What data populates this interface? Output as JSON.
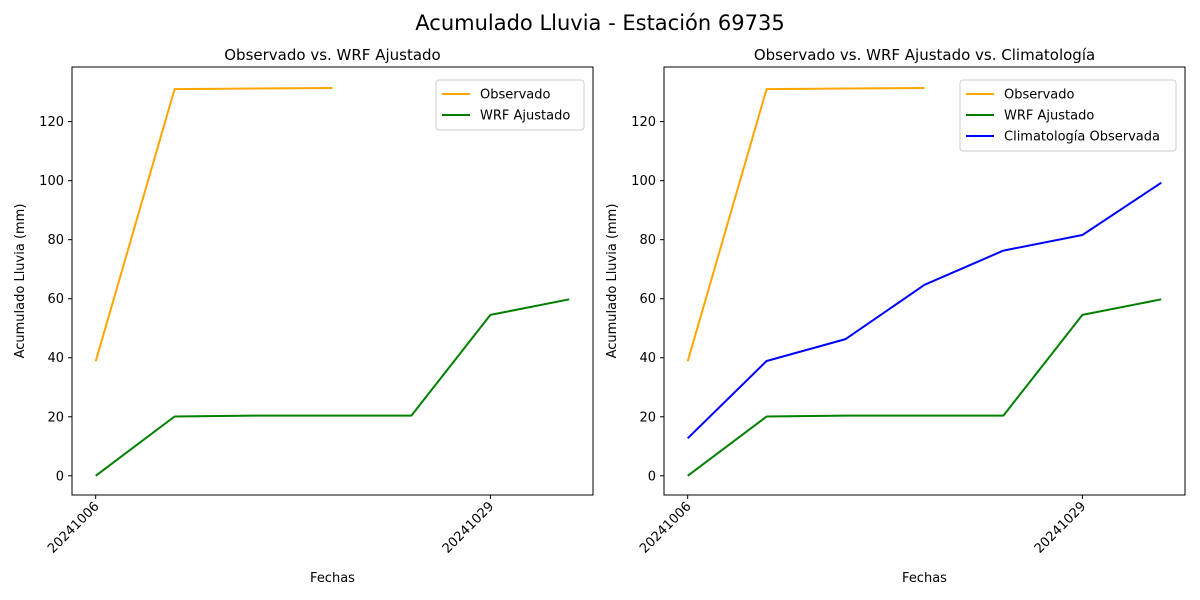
{
  "suptitle": "Acumulado Lluvia - Estación 69735",
  "chart_data": [
    {
      "type": "line",
      "title": "Observado vs. WRF Ajustado",
      "xlabel": "Fechas",
      "ylabel": "Acumulado Lluvia (mm)",
      "x_ticklabels": [
        "20241006",
        "20241029"
      ],
      "x_tick_index": [
        0,
        5
      ],
      "xlim": [
        -0.3,
        6.3
      ],
      "ylim": [
        -6.5,
        138.5
      ],
      "y_ticks": [
        0,
        20,
        40,
        60,
        80,
        100,
        120
      ],
      "grid": false,
      "legend_position": "upper right",
      "series": [
        {
          "name": "Observado",
          "color": "#ffa500",
          "values": [
            38.8,
            131.0,
            131.2,
            131.4
          ]
        },
        {
          "name": "WRF Ajustado",
          "color": "#008000",
          "values": [
            0,
            20.1,
            20.4,
            20.4,
            20.4,
            54.5,
            59.8
          ]
        }
      ]
    },
    {
      "type": "line",
      "title": "Observado vs. WRF Ajustado vs. Climatología",
      "xlabel": "Fechas",
      "ylabel": "Acumulado Lluvia (mm)",
      "x_ticklabels": [
        "20241006",
        "20241029"
      ],
      "x_tick_index": [
        0,
        5
      ],
      "xlim": [
        -0.3,
        6.3
      ],
      "ylim": [
        -6.5,
        138.5
      ],
      "y_ticks": [
        0,
        20,
        40,
        60,
        80,
        100,
        120
      ],
      "grid": false,
      "legend_position": "upper right",
      "series": [
        {
          "name": "Observado",
          "color": "#ffa500",
          "values": [
            38.8,
            131.0,
            131.2,
            131.4
          ]
        },
        {
          "name": "WRF Ajustado",
          "color": "#008000",
          "values": [
            0,
            20.1,
            20.4,
            20.4,
            20.4,
            54.5,
            59.8
          ]
        },
        {
          "name": "Climatología Observada",
          "color": "#0000ff",
          "values": [
            12.7,
            38.9,
            46.3,
            64.7,
            76.3,
            81.6,
            99.3
          ]
        }
      ]
    }
  ]
}
